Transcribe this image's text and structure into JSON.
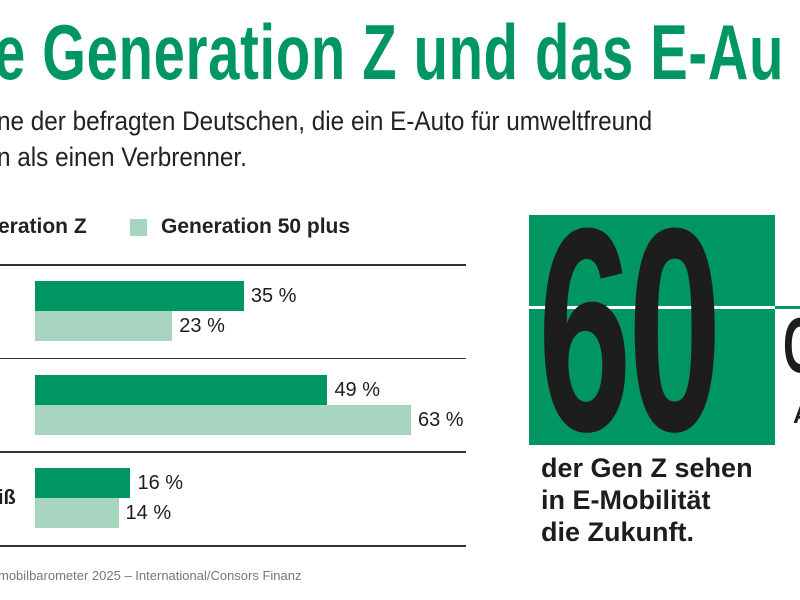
{
  "chart_data": {
    "type": "bar",
    "orientation": "horizontal",
    "title": "e Generation Z und das E-Au",
    "subtitle": [
      "ne der befragten Deutschen, die ein E-Auto für umweltfreund",
      "n als einen Verbrenner."
    ],
    "categories": [
      "",
      "",
      "iß"
    ],
    "series": [
      {
        "name": "eration Z",
        "color": "#009661",
        "values": [
          35,
          49,
          16
        ]
      },
      {
        "name": "Generation 50 plus",
        "color": "#a8d5c0",
        "values": [
          23,
          63,
          14
        ]
      }
    ],
    "value_labels": [
      [
        "35 %",
        "49 %",
        "16 %"
      ],
      [
        "23 %",
        "63 %",
        "14 %"
      ]
    ],
    "xlim": [
      0,
      63
    ],
    "legend_position": "top-left",
    "grid": false,
    "source": "mobilbarometer 2025 – International/Consors Finanz"
  },
  "callout": {
    "number": "60",
    "lines": [
      "der Gen Z sehen",
      "in E-Mobilität",
      "die Zukunft."
    ],
    "color": "#009661",
    "cut_right": [
      "C",
      "A"
    ]
  }
}
